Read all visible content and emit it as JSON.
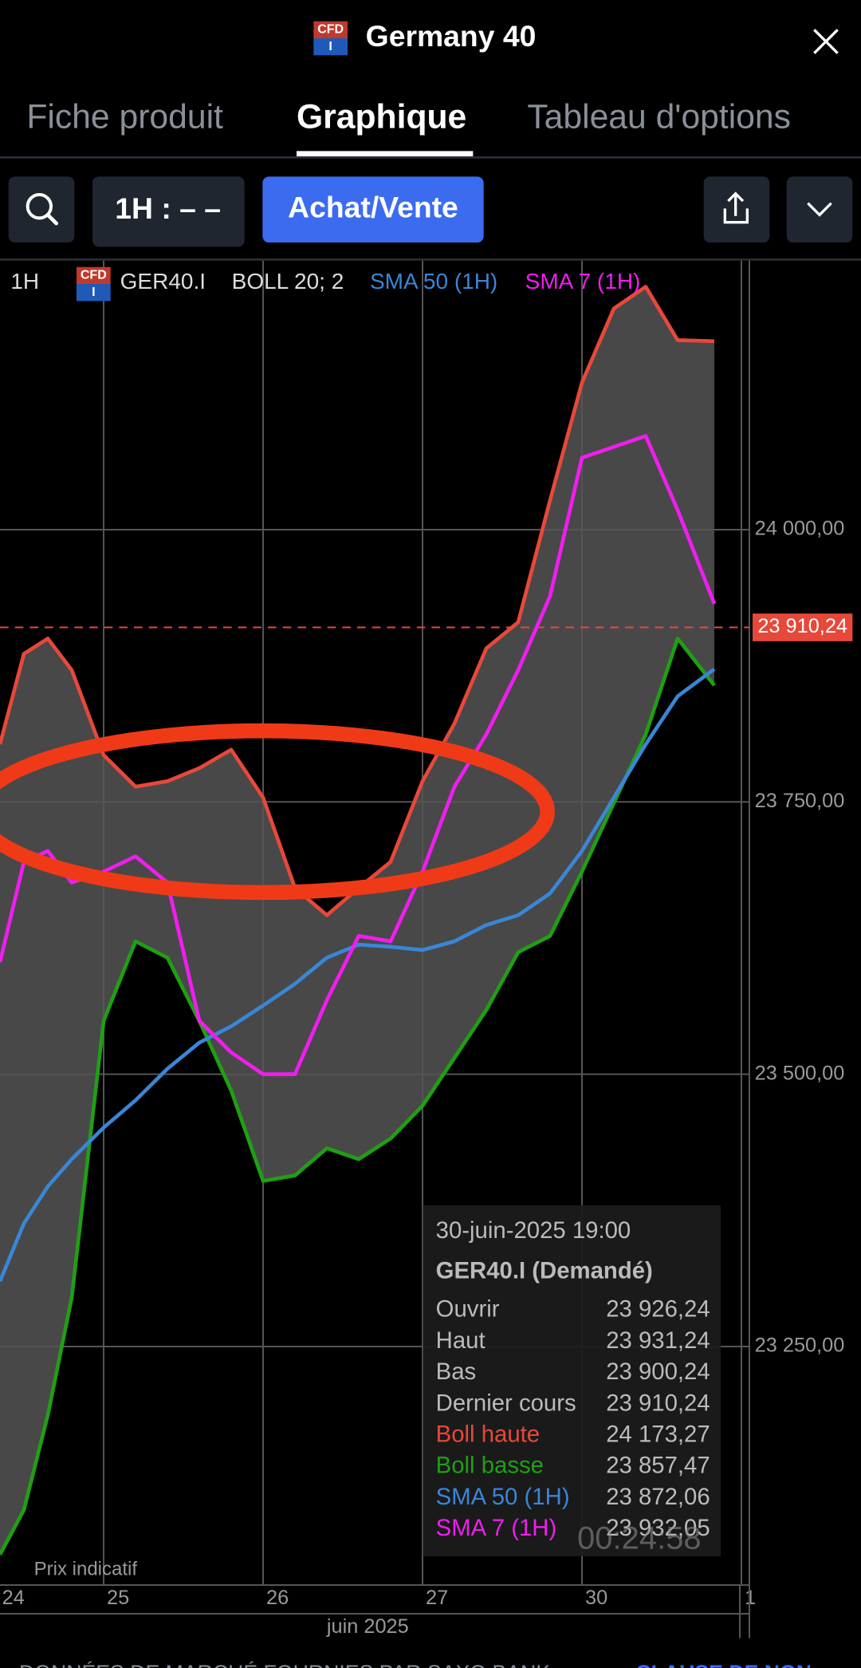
{
  "header": {
    "title": "Germany 40",
    "badge": [
      "CFD",
      "I"
    ]
  },
  "tabs": [
    "Fiche produit",
    "Graphique",
    "Tableau d'options"
  ],
  "toolbar": {
    "interval": "1H : – –",
    "trade_button": "Achat/Vente"
  },
  "chart_legend": {
    "interval": "1H",
    "symbol": "GER40.I",
    "bollinger": "BOLL 20; 2"
  },
  "chart_data": {
    "type": "line",
    "x": [
      0.35,
      0.5,
      0.65,
      0.8,
      1.0,
      1.2,
      1.4,
      1.6,
      1.8,
      2.0,
      2.2,
      2.4,
      2.6,
      2.8,
      3.0,
      3.2,
      3.4,
      3.6,
      3.8,
      4.0,
      4.2,
      4.4,
      4.6,
      4.83
    ],
    "series": [
      {
        "name": "Boll haute",
        "color": "#e8483a",
        "values": [
          23803,
          23886,
          23900,
          23871,
          23793,
          23764,
          23769,
          23781,
          23798,
          23754,
          23671,
          23646,
          23671,
          23695,
          23769,
          23822,
          23891,
          23915,
          24027,
          24135,
          24203,
          24223,
          24174,
          24173
        ]
      },
      {
        "name": "Boll basse",
        "color": "#1fa012",
        "values": [
          23059,
          23100,
          23187,
          23295,
          23549,
          23622,
          23607,
          23549,
          23485,
          23402,
          23407,
          23432,
          23422,
          23441,
          23471,
          23515,
          23559,
          23612,
          23627,
          23686,
          23749,
          23812,
          23900,
          23857
        ]
      },
      {
        "name": "SMA 50 (1H)",
        "color": "#3a86d6",
        "values": [
          23310,
          23363,
          23397,
          23422,
          23451,
          23476,
          23505,
          23529,
          23544,
          23563,
          23583,
          23607,
          23619,
          23617,
          23614,
          23622,
          23637,
          23646,
          23666,
          23705,
          23754,
          23803,
          23847,
          23872
        ]
      },
      {
        "name": "SMA 7 (1H)",
        "color": "#f01df0",
        "values": [
          23603,
          23695,
          23705,
          23676,
          23686,
          23700,
          23676,
          23549,
          23520,
          23500,
          23500,
          23568,
          23627,
          23622,
          23686,
          23764,
          23812,
          23871,
          23939,
          24066,
          24076,
          24086,
          24018,
          23932
        ]
      }
    ],
    "band_fill": "#484848",
    "xlim": [
      0.35,
      5.05
    ],
    "xticks": [
      {
        "value": 0,
        "label": "24"
      },
      {
        "value": 1,
        "label": "25"
      },
      {
        "value": 2,
        "label": "26"
      },
      {
        "value": 3,
        "label": "27"
      },
      {
        "value": 4,
        "label": "30"
      },
      {
        "value": 5,
        "label": "1"
      }
    ],
    "x_axis_label": "juin 2025",
    "ylim": [
      23031,
      24247
    ],
    "yticks": [
      {
        "value": 23250,
        "label": "23 250,00"
      },
      {
        "value": 23500,
        "label": "23 500,00"
      },
      {
        "value": 23750,
        "label": "23 750,00"
      },
      {
        "value": 24000,
        "label": "24 000,00"
      }
    ],
    "grid": true,
    "last_price": {
      "value": 23910.24,
      "label": "23 910,24",
      "color": "#e8483a"
    },
    "note": "Prix indicatif"
  },
  "tooltip": {
    "date": "30-juin-2025 19:00",
    "title": "GER40.I (Demandé)",
    "rows": [
      {
        "label": "Ouvrir",
        "value": "23 926,24"
      },
      {
        "label": "Haut",
        "value": "23 931,24"
      },
      {
        "label": "Bas",
        "value": "23 900,24"
      },
      {
        "label": "Dernier cours",
        "value": "23 910,24"
      }
    ],
    "series_values": [
      "24 173,27",
      "23 857,47",
      "23 872,06",
      "23 932,05"
    ]
  },
  "timer": "00:24:58",
  "footer": {
    "disclaimer": "DONNÉES DE MARCHÉ FOURNIES PAR SAXO BANK",
    "link": "CLAUSE DE NON"
  }
}
